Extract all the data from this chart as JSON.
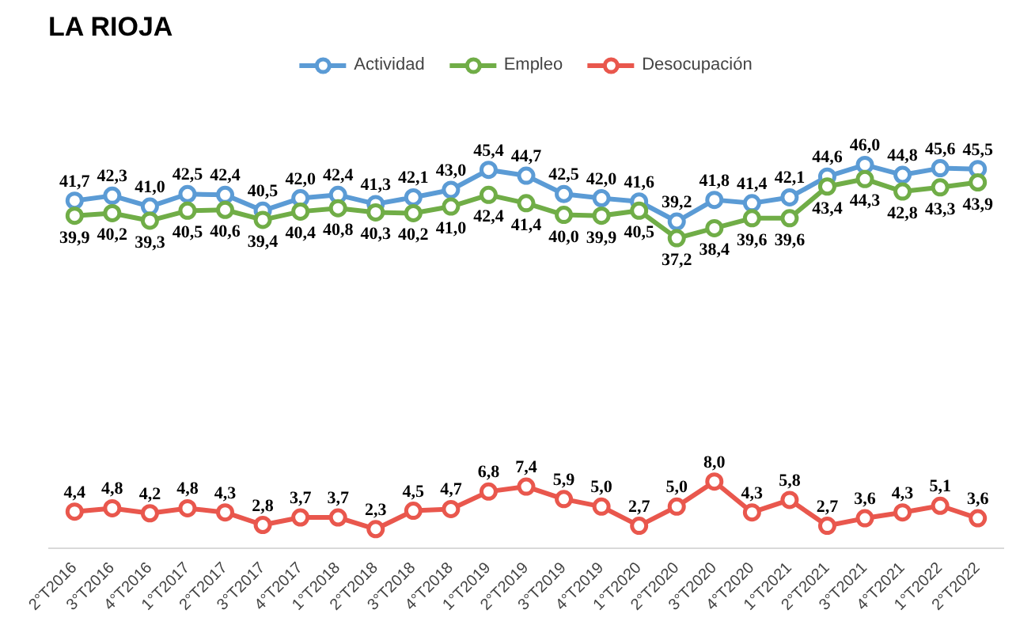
{
  "chart_data": {
    "type": "line",
    "title": "LA RIOJA",
    "categories": [
      "2°T2016",
      "3°T2016",
      "4°T2016",
      "1°T2017",
      "2°T2017",
      "3°T2017",
      "4°T2017",
      "1°T2018",
      "2°T2018",
      "3°T2018",
      "4°T2018",
      "1°T2019",
      "2°T2019",
      "3°T2019",
      "4°T2019",
      "1°T2020",
      "2°T2020",
      "3°T2020",
      "4°T2020",
      "1°T2021",
      "2°T2021",
      "3°T2021",
      "4°T2021",
      "1°T2022",
      "2°T2022"
    ],
    "series": [
      {
        "name": "Actividad",
        "color": "#5b9bd5",
        "values": [
          41.7,
          42.3,
          41.0,
          42.5,
          42.4,
          40.5,
          42.0,
          42.4,
          41.3,
          42.1,
          43.0,
          45.4,
          44.7,
          42.5,
          42.0,
          41.6,
          39.2,
          41.8,
          41.4,
          42.1,
          44.6,
          46.0,
          44.8,
          45.6,
          45.5
        ],
        "value_labels": [
          "41,7",
          "42,3",
          "41,0",
          "42,5",
          "42,4",
          "40,5",
          "42,0",
          "42,4",
          "41,3",
          "42,1",
          "43,0",
          "45,4",
          "44,7",
          "42,5",
          "42,0",
          "41,6",
          "39,2",
          "41,8",
          "41,4",
          "42,1",
          "44,6",
          "46,0",
          "44,8",
          "45,6",
          "45,5"
        ]
      },
      {
        "name": "Empleo",
        "color": "#70ad47",
        "values": [
          39.9,
          40.2,
          39.3,
          40.5,
          40.6,
          39.4,
          40.4,
          40.8,
          40.3,
          40.2,
          41.0,
          42.4,
          41.4,
          40.0,
          39.9,
          40.5,
          37.2,
          38.4,
          39.6,
          39.6,
          43.4,
          44.3,
          42.8,
          43.3,
          43.9
        ],
        "value_labels": [
          "39,9",
          "40,2",
          "39,3",
          "40,5",
          "40,6",
          "39,4",
          "40,4",
          "40,8",
          "40,3",
          "40,2",
          "41,0",
          "42,4",
          "41,4",
          "40,0",
          "39,9",
          "40,5",
          "37,2",
          "38,4",
          "39,6",
          "39,6",
          "43,4",
          "44,3",
          "42,8",
          "43,3",
          "43,9"
        ]
      },
      {
        "name": "Desocupación",
        "color": "#e9574d",
        "values": [
          4.4,
          4.8,
          4.2,
          4.8,
          4.3,
          2.8,
          3.7,
          3.7,
          2.3,
          4.5,
          4.7,
          6.8,
          7.4,
          5.9,
          5.0,
          2.7,
          5.0,
          8.0,
          4.3,
          5.8,
          2.7,
          3.6,
          4.3,
          5.1,
          3.6
        ],
        "value_labels": [
          "4,4",
          "4,8",
          "4,2",
          "4,8",
          "4,3",
          "2,8",
          "3,7",
          "3,7",
          "2,3",
          "4,5",
          "4,7",
          "6,8",
          "7,4",
          "5,9",
          "5,0",
          "2,7",
          "5,0",
          "8,0",
          "4,3",
          "5,8",
          "2,7",
          "3,6",
          "4,3",
          "5,1",
          "3,6"
        ]
      }
    ],
    "legend": "top",
    "grid": false,
    "marker": "circle",
    "line_style": "solid"
  }
}
